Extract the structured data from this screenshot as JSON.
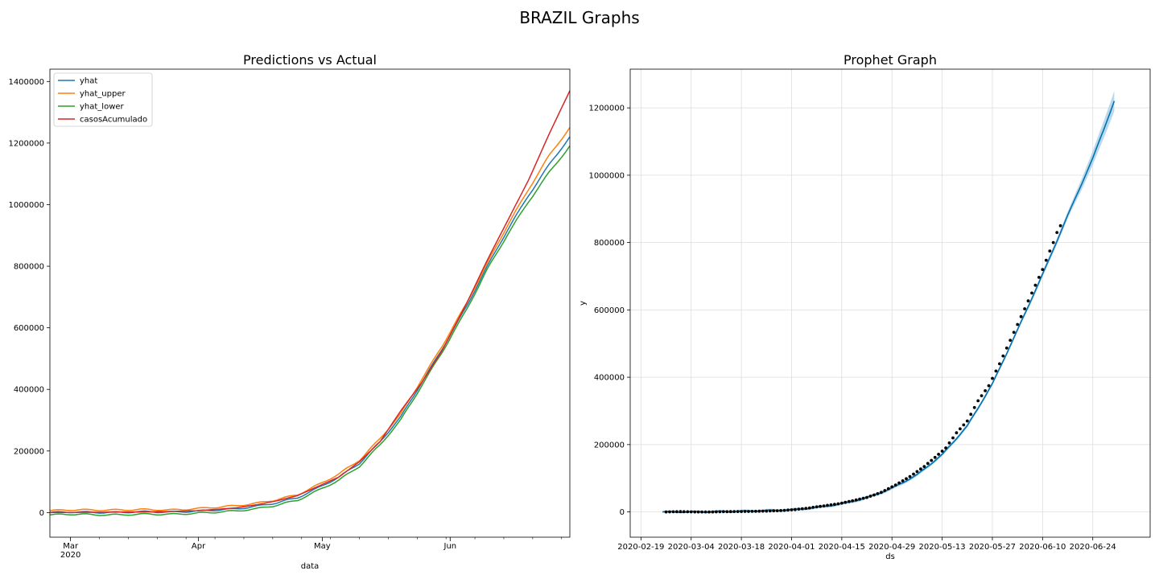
{
  "page": {
    "suptitle": "BRAZIL Graphs"
  },
  "chart_data": [
    {
      "type": "line",
      "title": "Predictions vs Actual",
      "xlabel": "data",
      "ylabel": "",
      "x_start": "2020-02-25",
      "x_end": "2020-06-30",
      "ylim": [
        -80000,
        1440000
      ],
      "grid": false,
      "legend_position": "top-left",
      "xticks": [
        {
          "date": "2020-03-01",
          "label": "Mar",
          "sublabel": "2020"
        },
        {
          "date": "2020-04-01",
          "label": "Apr",
          "sublabel": ""
        },
        {
          "date": "2020-05-01",
          "label": "May",
          "sublabel": ""
        },
        {
          "date": "2020-06-01",
          "label": "Jun",
          "sublabel": ""
        }
      ],
      "yticks": [
        0,
        200000,
        400000,
        600000,
        800000,
        1000000,
        1200000,
        1400000
      ],
      "ytick_labels": [
        "0",
        "200000",
        "400000",
        "600000",
        "800000",
        "1000000",
        "1200000",
        "1400000"
      ],
      "series": [
        {
          "name": "yhat",
          "color": "#1f77b4",
          "points": [
            [
              "2020-02-25",
              0
            ],
            [
              "2020-03-01",
              2000
            ],
            [
              "2020-03-10",
              0
            ],
            [
              "2020-03-20",
              3000
            ],
            [
              "2020-03-25",
              1000
            ],
            [
              "2020-04-01",
              5000
            ],
            [
              "2020-04-10",
              12000
            ],
            [
              "2020-04-15",
              20000
            ],
            [
              "2020-04-20",
              32000
            ],
            [
              "2020-04-25",
              48000
            ],
            [
              "2020-04-30",
              80000
            ],
            [
              "2020-05-05",
              115000
            ],
            [
              "2020-05-10",
              160000
            ],
            [
              "2020-05-15",
              230000
            ],
            [
              "2020-05-20",
              310000
            ],
            [
              "2020-05-25",
              420000
            ],
            [
              "2020-05-30",
              530000
            ],
            [
              "2020-06-05",
              670000
            ],
            [
              "2020-06-10",
              800000
            ],
            [
              "2020-06-15",
              920000
            ],
            [
              "2020-06-20",
              1030000
            ],
            [
              "2020-06-25",
              1130000
            ],
            [
              "2020-06-30",
              1220000
            ]
          ]
        },
        {
          "name": "yhat_upper",
          "color": "#ff7f0e",
          "points": [
            [
              "2020-02-25",
              6000
            ],
            [
              "2020-03-01",
              9000
            ],
            [
              "2020-03-10",
              8000
            ],
            [
              "2020-03-20",
              10000
            ],
            [
              "2020-03-25",
              8000
            ],
            [
              "2020-04-01",
              13000
            ],
            [
              "2020-04-10",
              22000
            ],
            [
              "2020-04-15",
              30000
            ],
            [
              "2020-04-20",
              42000
            ],
            [
              "2020-04-25",
              58000
            ],
            [
              "2020-04-30",
              90000
            ],
            [
              "2020-05-05",
              125000
            ],
            [
              "2020-05-10",
              170000
            ],
            [
              "2020-05-15",
              240000
            ],
            [
              "2020-05-20",
              320000
            ],
            [
              "2020-05-25",
              430000
            ],
            [
              "2020-05-30",
              540000
            ],
            [
              "2020-06-05",
              680000
            ],
            [
              "2020-06-10",
              810000
            ],
            [
              "2020-06-15",
              935000
            ],
            [
              "2020-06-20",
              1050000
            ],
            [
              "2020-06-25",
              1160000
            ],
            [
              "2020-06-30",
              1250000
            ]
          ]
        },
        {
          "name": "yhat_lower",
          "color": "#2ca02c",
          "points": [
            [
              "2020-02-25",
              -8000
            ],
            [
              "2020-03-01",
              -5000
            ],
            [
              "2020-03-10",
              -8000
            ],
            [
              "2020-03-20",
              -5000
            ],
            [
              "2020-03-25",
              -6000
            ],
            [
              "2020-04-01",
              -2000
            ],
            [
              "2020-04-10",
              5000
            ],
            [
              "2020-04-15",
              12000
            ],
            [
              "2020-04-20",
              24000
            ],
            [
              "2020-04-25",
              40000
            ],
            [
              "2020-04-30",
              72000
            ],
            [
              "2020-05-05",
              105000
            ],
            [
              "2020-05-10",
              150000
            ],
            [
              "2020-05-15",
              220000
            ],
            [
              "2020-05-20",
              300000
            ],
            [
              "2020-05-25",
              410000
            ],
            [
              "2020-05-30",
              520000
            ],
            [
              "2020-06-05",
              660000
            ],
            [
              "2020-06-10",
              790000
            ],
            [
              "2020-06-15",
              905000
            ],
            [
              "2020-06-20",
              1010000
            ],
            [
              "2020-06-25",
              1105000
            ],
            [
              "2020-06-30",
              1190000
            ]
          ]
        },
        {
          "name": "casosAcumulado",
          "color": "#d62728",
          "points": [
            [
              "2020-02-25",
              0
            ],
            [
              "2020-03-20",
              2000
            ],
            [
              "2020-04-01",
              6000
            ],
            [
              "2020-04-10",
              15000
            ],
            [
              "2020-04-15",
              25000
            ],
            [
              "2020-04-20",
              38000
            ],
            [
              "2020-04-25",
              55000
            ],
            [
              "2020-04-30",
              85000
            ],
            [
              "2020-05-05",
              115000
            ],
            [
              "2020-05-10",
              165000
            ],
            [
              "2020-05-15",
              230000
            ],
            [
              "2020-05-20",
              330000
            ],
            [
              "2020-05-25",
              420000
            ],
            [
              "2020-05-30",
              525000
            ],
            [
              "2020-06-05",
              680000
            ],
            [
              "2020-06-10",
              820000
            ],
            [
              "2020-06-15",
              950000
            ],
            [
              "2020-06-20",
              1080000
            ],
            [
              "2020-06-25",
              1230000
            ],
            [
              "2020-06-30",
              1370000
            ]
          ]
        }
      ]
    },
    {
      "type": "line",
      "title": "Prophet Graph",
      "xlabel": "ds",
      "ylabel": "y",
      "x_start": "2020-02-16",
      "x_end": "2020-07-10",
      "ylim": [
        -75000,
        1315000
      ],
      "grid": true,
      "xticks": [
        "2020-02-19",
        "2020-03-04",
        "2020-03-18",
        "2020-04-01",
        "2020-04-15",
        "2020-04-29",
        "2020-05-13",
        "2020-05-27",
        "2020-06-10",
        "2020-06-24"
      ],
      "yticks": [
        0,
        200000,
        400000,
        600000,
        800000,
        1000000,
        1200000
      ],
      "ytick_labels": [
        "0",
        "200000",
        "400000",
        "600000",
        "800000",
        "1000000",
        "1200000"
      ],
      "forecast_color": "#0072B2",
      "band_color": "#b3d4ea",
      "actual_color": "#000000",
      "forecast": [
        [
          "2020-02-25",
          0
        ],
        [
          "2020-03-04",
          0
        ],
        [
          "2020-03-18",
          2000
        ],
        [
          "2020-04-01",
          6000
        ],
        [
          "2020-04-08",
          13000
        ],
        [
          "2020-04-15",
          24000
        ],
        [
          "2020-04-22",
          42000
        ],
        [
          "2020-04-29",
          70000
        ],
        [
          "2020-05-06",
          110000
        ],
        [
          "2020-05-13",
          170000
        ],
        [
          "2020-05-20",
          255000
        ],
        [
          "2020-05-27",
          380000
        ],
        [
          "2020-06-03",
          540000
        ],
        [
          "2020-06-10",
          705000
        ],
        [
          "2020-06-17",
          880000
        ],
        [
          "2020-06-24",
          1050000
        ],
        [
          "2020-06-30",
          1220000
        ]
      ],
      "band_halfwidth": [
        [
          "2020-02-25",
          3000
        ],
        [
          "2020-06-03",
          6000
        ],
        [
          "2020-06-17",
          10000
        ],
        [
          "2020-06-30",
          30000
        ]
      ],
      "actual": [
        [
          "2020-02-26",
          0
        ],
        [
          "2020-03-01",
          1000
        ],
        [
          "2020-03-05",
          0
        ],
        [
          "2020-03-10",
          0
        ],
        [
          "2020-03-15",
          1000
        ],
        [
          "2020-03-20",
          1500
        ],
        [
          "2020-03-25",
          2500
        ],
        [
          "2020-03-29",
          4000
        ],
        [
          "2020-04-02",
          7000
        ],
        [
          "2020-04-06",
          12000
        ],
        [
          "2020-04-10",
          18000
        ],
        [
          "2020-04-14",
          24000
        ],
        [
          "2020-04-18",
          33000
        ],
        [
          "2020-04-22",
          43000
        ],
        [
          "2020-04-26",
          58000
        ],
        [
          "2020-04-30",
          80000
        ],
        [
          "2020-05-04",
          105000
        ],
        [
          "2020-05-08",
          135000
        ],
        [
          "2020-05-11",
          162000
        ],
        [
          "2020-05-14",
          190000
        ],
        [
          "2020-05-17",
          235000
        ],
        [
          "2020-05-20",
          270000
        ],
        [
          "2020-05-23",
          330000
        ],
        [
          "2020-05-26",
          375000
        ],
        [
          "2020-05-29",
          440000
        ],
        [
          "2020-06-01",
          510000
        ],
        [
          "2020-06-04",
          580000
        ],
        [
          "2020-06-07",
          650000
        ],
        [
          "2020-06-10",
          720000
        ],
        [
          "2020-06-12",
          775000
        ],
        [
          "2020-06-13",
          800000
        ],
        [
          "2020-06-14",
          830000
        ],
        [
          "2020-06-15",
          850000
        ]
      ]
    }
  ]
}
